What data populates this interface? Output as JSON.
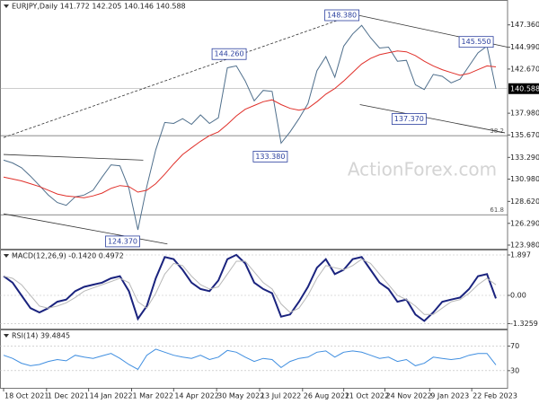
{
  "chart_data": [
    {
      "type": "line",
      "title": "EURJPY,Daily  141.772 142.205 140.146 140.588",
      "xlim": [
        -0.2,
        56.3
      ],
      "ylim": [
        123.6,
        150.0
      ],
      "yticks": [
        {
          "value": 147.36,
          "label": "147.360"
        },
        {
          "value": 144.99,
          "label": "144.990"
        },
        {
          "value": 142.67,
          "label": "142.670"
        },
        {
          "value": 137.98,
          "label": "137.980"
        },
        {
          "value": 135.67,
          "label": "135.670"
        },
        {
          "value": 133.29,
          "label": "133.290"
        },
        {
          "value": 130.98,
          "label": "130.980"
        },
        {
          "value": 128.62,
          "label": "128.620"
        },
        {
          "value": 126.29,
          "label": "126.290"
        },
        {
          "value": 123.98,
          "label": "123.980"
        }
      ],
      "last_price": {
        "value": 140.588,
        "label": "140.588"
      },
      "series": [
        {
          "name": "EURJPY",
          "color": "#4f6f8c",
          "values": [
            133.0,
            132.7,
            132.2,
            131.3,
            130.3,
            129.3,
            128.5,
            128.2,
            129.1,
            129.3,
            129.8,
            131.2,
            132.5,
            132.4,
            130.0,
            125.6,
            130.2,
            134.1,
            137.0,
            136.9,
            137.4,
            136.8,
            137.8,
            136.9,
            137.5,
            142.8,
            143.0,
            141.4,
            139.3,
            140.4,
            140.3,
            134.8,
            136.0,
            137.4,
            139.0,
            142.5,
            144.0,
            141.8,
            145.1,
            146.4,
            147.3,
            146.0,
            144.9,
            145.0,
            143.5,
            143.6,
            141.0,
            140.5,
            142.1,
            141.9,
            141.2,
            141.6,
            143.0,
            144.4,
            145.1,
            140.588
          ]
        },
        {
          "name": "MA",
          "color": "#e0302a",
          "values": [
            131.2,
            131.0,
            130.8,
            130.5,
            130.2,
            129.8,
            129.4,
            129.2,
            129.1,
            129.0,
            129.2,
            129.5,
            130.0,
            130.3,
            130.2,
            129.6,
            129.8,
            130.5,
            131.5,
            132.6,
            133.6,
            134.3,
            135.0,
            135.6,
            136.0,
            136.8,
            137.7,
            138.4,
            138.8,
            139.2,
            139.4,
            138.9,
            138.5,
            138.3,
            138.5,
            139.2,
            140.0,
            140.6,
            141.4,
            142.3,
            143.2,
            143.8,
            144.2,
            144.4,
            144.6,
            144.5,
            144.1,
            143.5,
            143.0,
            142.6,
            142.3,
            142.0,
            142.2,
            142.6,
            143.0,
            142.9
          ]
        }
      ],
      "annotations": [
        {
          "x": 38.8,
          "value": 148.38,
          "label": "148.380"
        },
        {
          "x": 26.2,
          "value": 144.26,
          "label": "144.260"
        },
        {
          "x": 53.8,
          "value": 145.55,
          "label": "145.550"
        },
        {
          "x": 46.3,
          "value": 137.37,
          "label": "137.370"
        },
        {
          "x": 30.8,
          "value": 133.38,
          "label": "133.380"
        },
        {
          "x": 14.3,
          "value": 124.37,
          "label": "124.370"
        }
      ],
      "trendlines": [
        {
          "points": [
            [
              0,
              135.4
            ],
            [
              39,
              148.4
            ]
          ],
          "dashed": true
        },
        {
          "points": [
            [
              39.5,
              148.4
            ],
            [
              56.3,
              145.0
            ]
          ],
          "dashed": false
        },
        {
          "points": [
            [
              39.8,
              138.9
            ],
            [
              56.0,
              135.9
            ]
          ],
          "dashed": false
        },
        {
          "points": [
            [
              0,
              133.6
            ],
            [
              15.6,
              133.0
            ]
          ],
          "dashed": false
        },
        {
          "points": [
            [
              0,
              127.3
            ],
            [
              18.3,
              124.1
            ]
          ],
          "dashed": false
        }
      ],
      "fib_levels": [
        {
          "level": 38.2,
          "price": 135.6
        },
        {
          "level": 61.8,
          "price": 127.2
        }
      ],
      "watermark": "ActionForex.com"
    },
    {
      "type": "line",
      "title": "MACD(12,26,9) -0.1420 0.4972",
      "xlim": [
        -0.2,
        56.3
      ],
      "ylim": [
        -1.56,
        2.15
      ],
      "yticks": [
        1.897,
        {
          "value": 0,
          "label": "0.00"
        },
        -1.3259
      ],
      "series": [
        {
          "name": "MACD",
          "color": "#1a237e",
          "values": [
            0.9,
            0.6,
            0.0,
            -0.6,
            -0.8,
            -0.6,
            -0.3,
            -0.2,
            0.2,
            0.4,
            0.5,
            0.6,
            0.8,
            0.9,
            0.2,
            -1.1,
            -0.5,
            0.8,
            1.8,
            1.7,
            1.2,
            0.6,
            0.3,
            0.2,
            0.7,
            1.7,
            1.9,
            1.5,
            0.6,
            0.3,
            0.1,
            -1.0,
            -0.9,
            -0.3,
            0.4,
            1.3,
            1.7,
            1.0,
            1.2,
            1.7,
            1.8,
            1.2,
            0.6,
            0.3,
            -0.3,
            -0.2,
            -0.9,
            -1.2,
            -0.8,
            -0.3,
            -0.2,
            -0.1,
            0.3,
            0.9,
            1.0,
            -0.142
          ]
        },
        {
          "name": "Signal",
          "color": "#b8b8b8",
          "values": [
            0.9,
            0.8,
            0.5,
            0.0,
            -0.5,
            -0.6,
            -0.5,
            -0.35,
            -0.1,
            0.2,
            0.35,
            0.5,
            0.65,
            0.8,
            0.6,
            -0.3,
            -0.6,
            0.1,
            1.0,
            1.5,
            1.4,
            0.9,
            0.5,
            0.3,
            0.4,
            1.0,
            1.6,
            1.6,
            1.1,
            0.6,
            0.3,
            -0.4,
            -0.8,
            -0.6,
            0.0,
            0.8,
            1.4,
            1.3,
            1.2,
            1.4,
            1.7,
            1.5,
            1.0,
            0.5,
            0.0,
            -0.2,
            -0.5,
            -0.9,
            -0.9,
            -0.6,
            -0.3,
            -0.2,
            0.1,
            0.5,
            0.8,
            0.4972
          ]
        }
      ]
    },
    {
      "type": "line",
      "title": "RSI(14) 39.4845",
      "xlim": [
        -0.2,
        56.3
      ],
      "ylim": [
        2,
        97
      ],
      "yticks": [
        70,
        30
      ],
      "xticks": [
        {
          "value": 0,
          "label": "18 Oct 2021"
        },
        {
          "value": 4.8,
          "label": "1 Dec 2021"
        },
        {
          "value": 9.5,
          "label": "14 Jan 2022"
        },
        {
          "value": 14.3,
          "label": "1 Mar 2022"
        },
        {
          "value": 19,
          "label": "14 Apr 2022"
        },
        {
          "value": 23.8,
          "label": "30 May 2022"
        },
        {
          "value": 28.6,
          "label": "13 Jul 2022"
        },
        {
          "value": 33.4,
          "label": "26 Aug 2022"
        },
        {
          "value": 38,
          "label": "11 Oct 2022"
        },
        {
          "value": 42.6,
          "label": "24 Nov 2022"
        },
        {
          "value": 47.6,
          "label": "9 Jan 2023"
        },
        {
          "value": 52.3,
          "label": "22 Feb 2023"
        }
      ],
      "series": [
        {
          "name": "RSI",
          "color": "#3f8ee0",
          "values": [
            55,
            50,
            42,
            38,
            40,
            45,
            48,
            46,
            55,
            52,
            50,
            54,
            58,
            50,
            40,
            32,
            55,
            65,
            60,
            55,
            52,
            50,
            55,
            48,
            52,
            63,
            60,
            52,
            45,
            50,
            48,
            35,
            45,
            50,
            52,
            60,
            62,
            52,
            60,
            62,
            60,
            55,
            50,
            52,
            45,
            48,
            38,
            42,
            52,
            50,
            48,
            50,
            55,
            58,
            58,
            39.4845
          ]
        }
      ]
    }
  ]
}
